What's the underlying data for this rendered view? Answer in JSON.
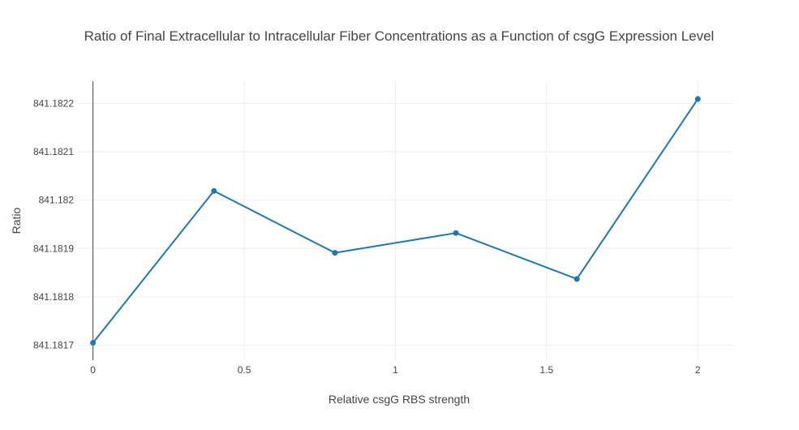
{
  "chart_data": {
    "type": "line",
    "title": "Ratio of Final Extracellular to Intracellular Fiber Concentrations as a Function of csgG Expression Level",
    "xlabel": "Relative csgG RBS strength",
    "ylabel": "Ratio",
    "x_ticks": [
      "0",
      "0.5",
      "1",
      "1.5",
      "2"
    ],
    "x_tick_values": [
      0,
      0.5,
      1,
      1.5,
      2
    ],
    "y_ticks": [
      "841.1817",
      "841.1818",
      "841.1819",
      "841.182",
      "841.1821",
      "841.1822"
    ],
    "y_tick_values": [
      841.1817,
      841.1818,
      841.1819,
      841.182,
      841.1821,
      841.1822
    ],
    "xlim": [
      -0.05,
      2.12
    ],
    "ylim": [
      841.181669,
      841.182246
    ],
    "grid": true,
    "legend": "none",
    "series": [
      {
        "x": [
          0,
          0.4,
          0.8,
          1.2,
          1.6,
          2
        ],
        "y": [
          841.181705,
          841.182019,
          841.181891,
          841.181932,
          841.181837,
          841.182209
        ],
        "color": "#1f77b4",
        "mode": "lines+markers"
      }
    ]
  }
}
